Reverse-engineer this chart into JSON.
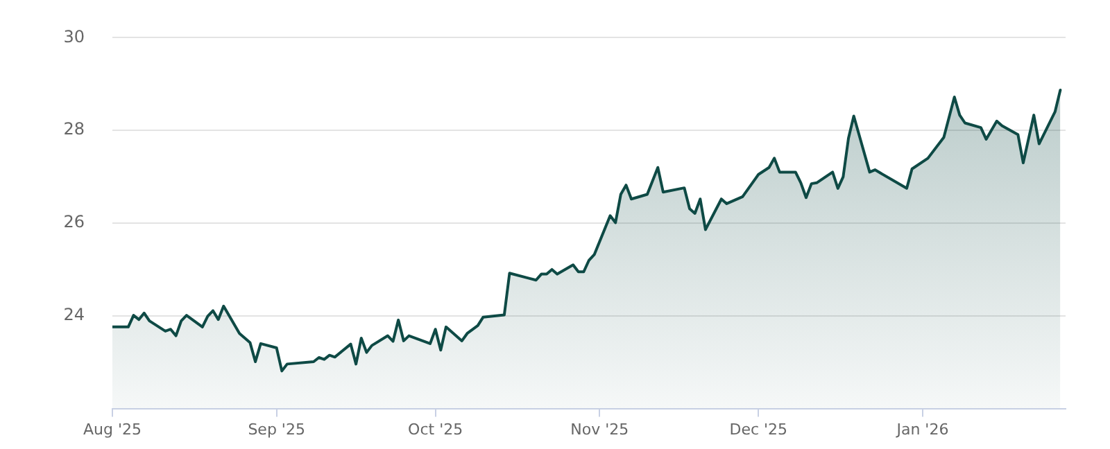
{
  "chart_data": {
    "type": "area",
    "x": [
      "2025-08-01",
      "2025-08-04",
      "2025-08-05",
      "2025-08-06",
      "2025-08-07",
      "2025-08-08",
      "2025-08-11",
      "2025-08-12",
      "2025-08-13",
      "2025-08-14",
      "2025-08-15",
      "2025-08-18",
      "2025-08-19",
      "2025-08-20",
      "2025-08-21",
      "2025-08-22",
      "2025-08-25",
      "2025-08-27",
      "2025-08-28",
      "2025-08-29",
      "2025-09-01",
      "2025-09-02",
      "2025-09-03",
      "2025-09-08",
      "2025-09-09",
      "2025-09-10",
      "2025-09-11",
      "2025-09-12",
      "2025-09-15",
      "2025-09-16",
      "2025-09-17",
      "2025-09-18",
      "2025-09-19",
      "2025-09-22",
      "2025-09-23",
      "2025-09-24",
      "2025-09-25",
      "2025-09-26",
      "2025-09-30",
      "2025-10-01",
      "2025-10-02",
      "2025-10-03",
      "2025-10-06",
      "2025-10-07",
      "2025-10-09",
      "2025-10-10",
      "2025-10-14",
      "2025-10-15",
      "2025-10-20",
      "2025-10-21",
      "2025-10-22",
      "2025-10-23",
      "2025-10-24",
      "2025-10-27",
      "2025-10-28",
      "2025-10-29",
      "2025-10-30",
      "2025-10-31",
      "2025-11-03",
      "2025-11-04",
      "2025-11-05",
      "2025-11-06",
      "2025-11-07",
      "2025-11-10",
      "2025-11-12",
      "2025-11-13",
      "2025-11-17",
      "2025-11-18",
      "2025-11-19",
      "2025-11-20",
      "2025-11-21",
      "2025-11-24",
      "2025-11-25",
      "2025-11-28",
      "2025-12-01",
      "2025-12-03",
      "2025-12-04",
      "2025-12-05",
      "2025-12-08",
      "2025-12-09",
      "2025-12-10",
      "2025-12-11",
      "2025-12-12",
      "2025-12-15",
      "2025-12-16",
      "2025-12-17",
      "2025-12-18",
      "2025-12-19",
      "2025-12-22",
      "2025-12-23",
      "2025-12-29",
      "2025-12-30",
      "2026-01-02",
      "2026-01-05",
      "2026-01-07",
      "2026-01-08",
      "2026-01-09",
      "2026-01-12",
      "2026-01-13",
      "2026-01-15",
      "2026-01-16",
      "2026-01-19",
      "2026-01-20",
      "2026-01-22",
      "2026-01-23",
      "2026-01-26",
      "2026-01-27"
    ],
    "series": [
      {
        "color": "#0e4a45",
        "values": [
          23.76,
          23.76,
          24.01,
          23.92,
          24.06,
          23.89,
          23.67,
          23.71,
          23.57,
          23.89,
          24.01,
          23.76,
          23.99,
          24.11,
          23.92,
          24.21,
          23.62,
          23.42,
          23.01,
          23.4,
          23.31,
          22.81,
          22.96,
          23.01,
          23.1,
          23.06,
          23.15,
          23.11,
          23.39,
          22.96,
          23.52,
          23.21,
          23.36,
          23.57,
          23.45,
          23.91,
          23.46,
          23.57,
          23.4,
          23.71,
          23.26,
          23.76,
          23.46,
          23.62,
          23.79,
          23.97,
          24.02,
          24.92,
          24.77,
          24.9,
          24.9,
          25.0,
          24.9,
          25.1,
          24.95,
          24.95,
          25.2,
          25.32,
          26.16,
          26.01,
          26.62,
          26.82,
          26.52,
          26.62,
          27.2,
          26.67,
          26.76,
          26.31,
          26.21,
          26.52,
          25.86,
          26.52,
          26.42,
          26.57,
          27.05,
          27.2,
          27.4,
          27.1,
          27.1,
          26.87,
          26.55,
          26.85,
          26.87,
          27.1,
          26.75,
          27.0,
          27.83,
          28.31,
          27.1,
          27.15,
          26.75,
          27.17,
          27.4,
          27.85,
          28.72,
          28.33,
          28.16,
          28.06,
          27.81,
          28.2,
          28.1,
          27.91,
          27.3,
          28.33,
          27.71,
          28.4,
          28.87
        ]
      }
    ],
    "xlim": [
      "2025-08-01",
      "2026-01-28"
    ],
    "xticks": [
      {
        "value": "2025-08-01",
        "label": "Aug '25"
      },
      {
        "value": "2025-09-01",
        "label": "Sep '25"
      },
      {
        "value": "2025-10-01",
        "label": "Oct '25"
      },
      {
        "value": "2025-11-01",
        "label": "Nov '25"
      },
      {
        "value": "2025-12-01",
        "label": "Dec '25"
      },
      {
        "value": "2026-01-01",
        "label": "Jan '26"
      }
    ],
    "ylim": [
      22,
      30
    ],
    "yticks": [
      24,
      26,
      28,
      30
    ],
    "grid": "y",
    "legend": false,
    "marker": "none",
    "line_style": "solid"
  }
}
